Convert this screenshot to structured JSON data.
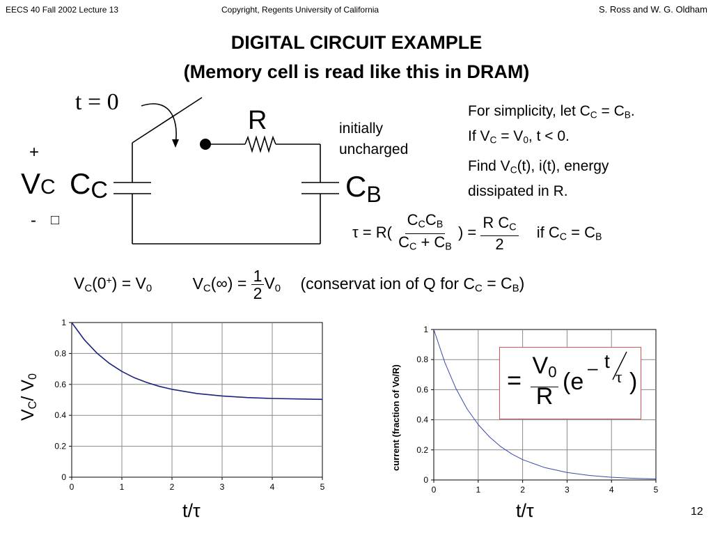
{
  "header": {
    "course": "EECS 40 Fall 2002   Lecture 13",
    "copyright": "Copyright, Regents University of California",
    "authors": "S. Ross and W. G. Oldham"
  },
  "title": {
    "line1": "DIGITAL CIRCUIT EXAMPLE",
    "line2": "(Memory cell is read like this in DRAM)"
  },
  "circuit": {
    "switch_label": "t = 0",
    "resistor_label": "R",
    "plus": "+",
    "minus": "-",
    "missing_glyph": "□",
    "vc_main": "V",
    "vc_sub": "C",
    "cc_main": "C",
    "cc_sub": "C",
    "cb_main": "C",
    "cb_sub": "B",
    "note_line1": "initially",
    "note_line2": "uncharged"
  },
  "problem": {
    "line1_a": "For simplicity, let C",
    "line1_s1": "C",
    "line1_b": " = C",
    "line1_s2": "B",
    "line1_c": ".",
    "line2_a": "If V",
    "line2_s1": "C",
    "line2_b": " = V",
    "line2_s2": "0",
    "line2_c": ", t < 0.",
    "line3_a": "Find V",
    "line3_s1": "C",
    "line3_b": "(t), i(t), energy",
    "line4": "dissipated in R."
  },
  "equations": {
    "tau_eq": {
      "lhs": "τ = R(",
      "num1": "C",
      "num1s": "C",
      "num2": "C",
      "num2s": "B",
      "den1": "C",
      "den1s": "C",
      "den_plus": " + C",
      "den2s": "B",
      "close": ") =",
      "num3": "R C",
      "num3s": "C",
      "den3": "2",
      "if_text": "if  C",
      "if_s1": "C",
      "if_eq": " = C",
      "if_s2": "B"
    },
    "vc_eq": {
      "a": "V",
      "as": "C",
      "b": "(0",
      "bsup": "+",
      "c": ") = V",
      "cs": "0",
      "d": "V",
      "ds": "C",
      "e": "(∞) =",
      "fnum": "1",
      "fden": "2",
      "g": "V",
      "gs": "0",
      "h": "(conservat ion of Q for C",
      "hs1": "C",
      "i": " = C",
      "hs2": "B",
      "j": ")"
    }
  },
  "formula_box": {
    "eq": "=",
    "num": "V",
    "num_sub": "0",
    "den": "R",
    "paren_open": "(e",
    "exp_minus": "–",
    "exp_t": "t",
    "exp_tau": "τ",
    "paren_close": ")",
    "border_color": "#d9534f"
  },
  "chart_data": [
    {
      "type": "line",
      "title": "",
      "xlabel": "t/τ",
      "ylabel": "V_C/ V_0",
      "xlim": [
        0,
        5
      ],
      "ylim": [
        0,
        1
      ],
      "xticks": [
        "0",
        "1",
        "2",
        "3",
        "4",
        "5"
      ],
      "yticks": [
        "0",
        "0.2",
        "0.4",
        "0.6",
        "0.8",
        "1"
      ],
      "grid": true,
      "legend": "none",
      "line_color": "#1a237e",
      "series": [
        {
          "x": [
            0,
            0.25,
            0.5,
            0.75,
            1,
            1.25,
            1.5,
            1.75,
            2,
            2.5,
            3,
            3.5,
            4,
            4.5,
            5
          ],
          "y": [
            1,
            0.889,
            0.803,
            0.736,
            0.684,
            0.643,
            0.612,
            0.587,
            0.568,
            0.541,
            0.525,
            0.515,
            0.509,
            0.506,
            0.503
          ]
        }
      ]
    },
    {
      "type": "line",
      "title": "",
      "xlabel": "t/τ",
      "ylabel": "current (fraction of Vo/R)",
      "xlim": [
        0,
        5
      ],
      "ylim": [
        0,
        1
      ],
      "xticks": [
        "0",
        "1",
        "2",
        "3",
        "4",
        "5"
      ],
      "yticks": [
        "0",
        "0.2",
        "0.4",
        "0.6",
        "0.8",
        "1"
      ],
      "grid": true,
      "legend": "none",
      "line_color": "#3949ab",
      "series": [
        {
          "x": [
            0,
            0.25,
            0.5,
            0.75,
            1,
            1.25,
            1.5,
            1.75,
            2,
            2.5,
            3,
            3.5,
            4,
            4.5,
            5
          ],
          "y": [
            1,
            0.779,
            0.607,
            0.472,
            0.368,
            0.287,
            0.223,
            0.174,
            0.135,
            0.082,
            0.05,
            0.03,
            0.018,
            0.011,
            0.007
          ]
        }
      ]
    }
  ],
  "page_number": "12"
}
